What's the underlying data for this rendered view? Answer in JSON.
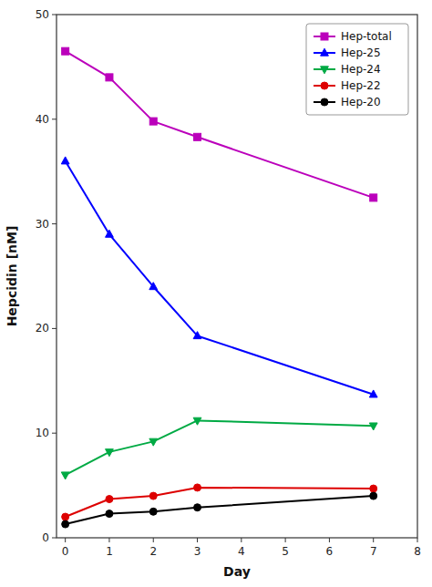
{
  "chart_data": {
    "type": "line",
    "x_label": "Day",
    "y_label": "Hepcidin [nM]",
    "x": [
      0,
      1,
      2,
      3,
      7
    ],
    "series": [
      {
        "name": "Hep-total",
        "color": "#BB00BB",
        "marker": "square",
        "values": [
          46.5,
          44.0,
          39.8,
          38.3,
          32.5
        ]
      },
      {
        "name": "Hep-25",
        "color": "#0000FF",
        "marker": "triangle-up",
        "values": [
          36.0,
          29.0,
          24.0,
          19.3,
          13.7
        ]
      },
      {
        "name": "Hep-24",
        "color": "#00AA44",
        "marker": "triangle-down",
        "values": [
          6.0,
          8.2,
          9.2,
          11.2,
          10.7
        ]
      },
      {
        "name": "Hep-22",
        "color": "#DD0000",
        "marker": "circle",
        "values": [
          2.0,
          3.7,
          4.0,
          4.8,
          4.7
        ]
      },
      {
        "name": "Hep-20",
        "color": "#000000",
        "marker": "circle",
        "values": [
          1.3,
          2.3,
          2.5,
          2.9,
          4.0
        ]
      }
    ],
    "xlim": [
      -0.2,
      8.0
    ],
    "ylim": [
      0,
      50
    ],
    "xticks": [
      0,
      1,
      2,
      3,
      4,
      5,
      6,
      7,
      8
    ],
    "yticks": [
      0,
      10,
      20,
      30,
      40,
      50
    ],
    "legend": "upper right",
    "grid": false
  }
}
